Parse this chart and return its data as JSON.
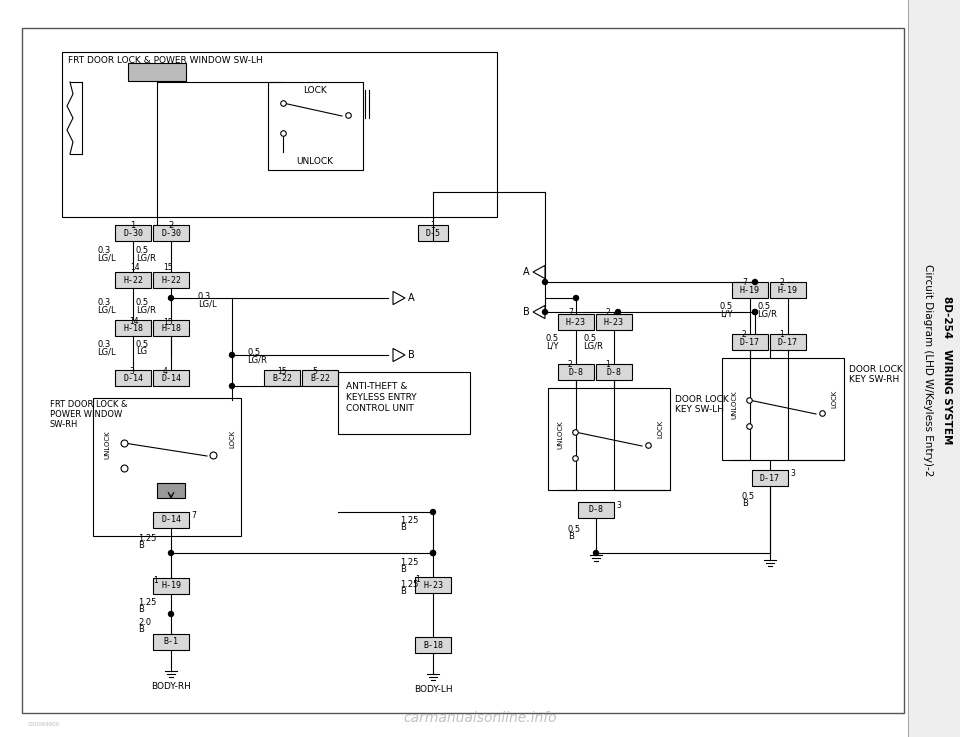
{
  "title_right1": "8D-254   WIRING SYSTEM",
  "title_right2": "Circuit Diagram (LHD W/Keyless Entry)-2",
  "bg_color": "#ffffff",
  "line_color": "#000000",
  "box_fill": "#d8d8d8",
  "text_color": "#000000",
  "watermark": "carmanualsonline.info"
}
